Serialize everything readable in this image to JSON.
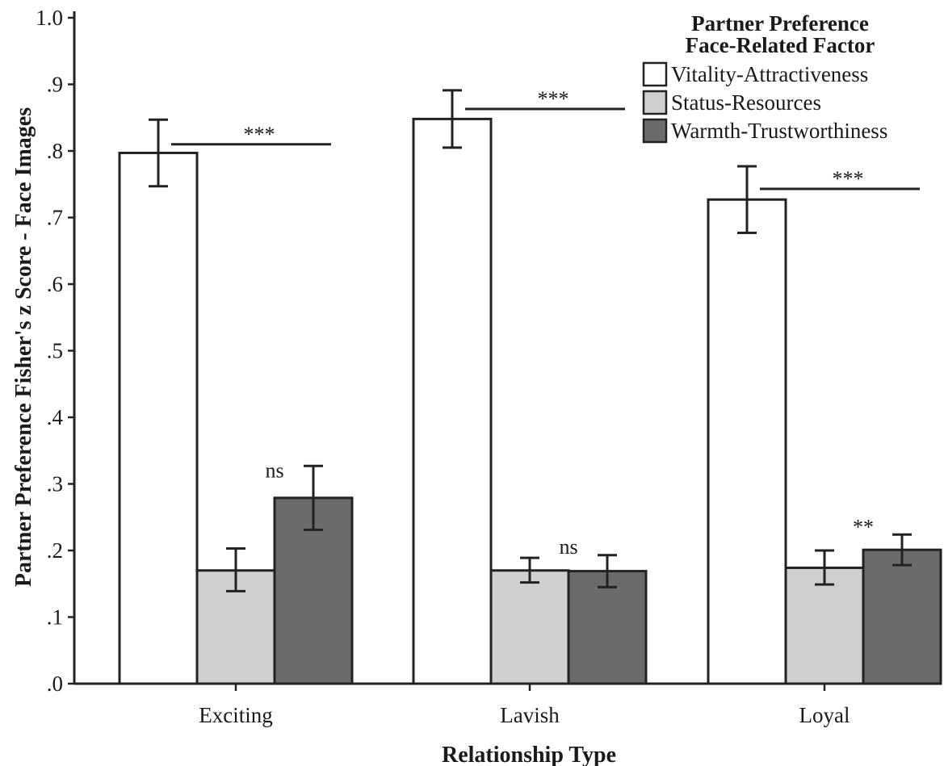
{
  "chart_data": {
    "type": "bar",
    "title": "",
    "xlabel": "Relationship Type",
    "ylabel": "Partner Preference Fisher's z Score - Face Images",
    "ylim": [
      0,
      1.0
    ],
    "yticks": [
      {
        "value": 0.0,
        "label": ".0"
      },
      {
        "value": 0.1,
        "label": ".1"
      },
      {
        "value": 0.2,
        "label": ".2"
      },
      {
        "value": 0.3,
        "label": ".3"
      },
      {
        "value": 0.4,
        "label": ".4"
      },
      {
        "value": 0.5,
        "label": ".5"
      },
      {
        "value": 0.6,
        "label": ".6"
      },
      {
        "value": 0.7,
        "label": ".7"
      },
      {
        "value": 0.8,
        "label": ".8"
      },
      {
        "value": 0.9,
        "label": ".9"
      },
      {
        "value": 1.0,
        "label": "1.0"
      }
    ],
    "categories": [
      "Exciting",
      "Lavish",
      "Loyal"
    ],
    "legend": {
      "title_line1": "Partner Preference",
      "title_line2": "Face-Related Factor",
      "placement": "top-right"
    },
    "series": [
      {
        "name": "Vitality-Attractiveness",
        "color": "#ffffff",
        "values": [
          0.797,
          0.848,
          0.727
        ],
        "err_low": [
          0.747,
          0.805,
          0.677
        ],
        "err_high": [
          0.847,
          0.891,
          0.777
        ]
      },
      {
        "name": "Status-Resources",
        "color": "#cfcfcf",
        "values": [
          0.17,
          0.17,
          0.174
        ],
        "err_low": [
          0.139,
          0.152,
          0.149
        ],
        "err_high": [
          0.203,
          0.189,
          0.2
        ]
      },
      {
        "name": "Warmth-Trustworthiness",
        "color": "#6b6b6b",
        "values": [
          0.279,
          0.169,
          0.201
        ],
        "err_low": [
          0.231,
          0.145,
          0.178
        ],
        "err_high": [
          0.327,
          0.193,
          0.224
        ]
      }
    ],
    "annotations": [
      {
        "category": 0,
        "text": "***",
        "type": "bracket",
        "y": 0.81
      },
      {
        "category": 1,
        "text": "***",
        "type": "bracket",
        "y": 0.863
      },
      {
        "category": 2,
        "text": "***",
        "type": "bracket",
        "y": 0.743
      },
      {
        "category": 0,
        "text": "ns",
        "type": "label",
        "y": 0.31
      },
      {
        "category": 1,
        "text": "ns",
        "type": "label",
        "y": 0.195
      },
      {
        "category": 2,
        "text": "**",
        "type": "label",
        "y": 0.225
      }
    ]
  }
}
